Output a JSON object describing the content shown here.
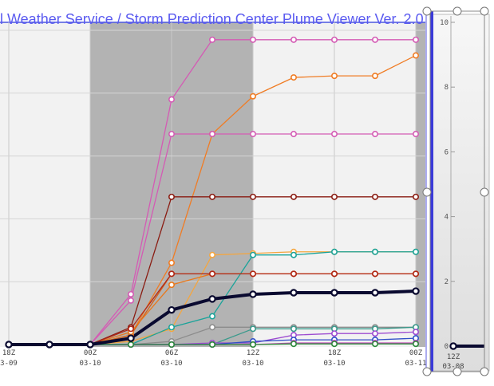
{
  "title": "al Weather Service / Storm Prediction Center Plume Viewer Ver. 2.0",
  "chart_data": {
    "type": "line",
    "x_ticks": [
      {
        "t": -1,
        "hour": "18Z",
        "date": "3-09"
      },
      {
        "t": 1,
        "hour": "00Z",
        "date": "03-10"
      },
      {
        "t": 3,
        "hour": "06Z",
        "date": "03-10"
      },
      {
        "t": 5,
        "hour": "12Z",
        "date": "03-10"
      },
      {
        "t": 7,
        "hour": "18Z",
        "date": "03-10"
      },
      {
        "t": 9,
        "hour": "00Z",
        "date": "03-11"
      }
    ],
    "y_ticks": [
      0,
      2,
      4,
      6,
      8,
      10
    ],
    "ylim": [
      0,
      10
    ],
    "x_points": [
      -1,
      0,
      1,
      2,
      3,
      4,
      5,
      6,
      7,
      8,
      9
    ],
    "series": [
      {
        "color": "#d45bb4",
        "values": [
          0,
          0,
          0,
          1.6,
          7.8,
          9.7,
          9.7,
          9.7,
          9.7,
          9.7,
          9.7
        ]
      },
      {
        "color": "#f07c24",
        "values": [
          0,
          0,
          0,
          0.3,
          2.6,
          6.7,
          7.9,
          8.5,
          8.55,
          8.55,
          9.2
        ]
      },
      {
        "color": "#d45bb4",
        "values": [
          0,
          0,
          0,
          1.4,
          6.7,
          6.7,
          6.7,
          6.7,
          6.7,
          6.7,
          6.7
        ]
      },
      {
        "color": "#8a1c12",
        "values": [
          0,
          0,
          0,
          0.55,
          4.7,
          4.7,
          4.7,
          4.7,
          4.7,
          4.7,
          4.7
        ]
      },
      {
        "color": "#f4a640",
        "values": [
          0,
          0,
          0,
          0.1,
          0.5,
          2.85,
          2.9,
          2.95,
          2.95,
          2.95,
          2.95
        ]
      },
      {
        "color": "#1aa39a",
        "values": [
          0,
          0,
          0,
          0,
          0.55,
          0.9,
          2.85,
          2.85,
          2.95,
          2.95,
          2.95
        ]
      },
      {
        "color": "#d46018",
        "values": [
          0,
          0,
          0,
          0.3,
          2.25,
          2.25,
          2.25,
          2.25,
          2.25,
          2.25,
          2.25
        ]
      },
      {
        "color": "#e8781c",
        "values": [
          0,
          0,
          0,
          0.4,
          1.9,
          2.25,
          2.25,
          2.25,
          2.25,
          2.25,
          2.25
        ]
      },
      {
        "color": "#b02818",
        "values": [
          0,
          0,
          0,
          0.5,
          2.25,
          2.25,
          2.25,
          2.25,
          2.25,
          2.25,
          2.25
        ]
      },
      {
        "color": "#8c8c8c",
        "values": [
          0,
          0,
          0,
          0,
          0.1,
          0.55,
          0.55,
          0.55,
          0.55,
          0.55,
          0.55
        ]
      },
      {
        "color": "#3a9a8c",
        "values": [
          0,
          0,
          0,
          0,
          0,
          0,
          0.5,
          0.5,
          0.5,
          0.5,
          0.55
        ]
      },
      {
        "color": "#9d4bd0",
        "values": [
          0,
          0,
          0,
          0,
          0,
          0.05,
          0.05,
          0.3,
          0.35,
          0.35,
          0.4
        ]
      },
      {
        "color": "#2f4fc8",
        "values": [
          0,
          0,
          0,
          0,
          0,
          0,
          0.1,
          0.15,
          0.15,
          0.15,
          0.2
        ]
      },
      {
        "color": "#c64fb8",
        "values": [
          0,
          0,
          0,
          0,
          0,
          0,
          0,
          0.05,
          0.05,
          0.05,
          0.05
        ]
      },
      {
        "color": "#2a8a3a",
        "values": [
          0,
          0,
          0,
          0,
          0,
          0,
          0,
          0.02,
          0.02,
          0.02,
          0.02
        ]
      },
      {
        "color": "#0a0a30",
        "mean": true,
        "values": [
          0,
          0,
          0,
          0.2,
          1.1,
          1.45,
          1.6,
          1.65,
          1.65,
          1.65,
          1.7
        ]
      }
    ],
    "side_axis": {
      "y_ticks": [
        0,
        2,
        4,
        6,
        8,
        10
      ],
      "x_hour": "12Z",
      "x_date": "03-08",
      "value": 0
    }
  }
}
